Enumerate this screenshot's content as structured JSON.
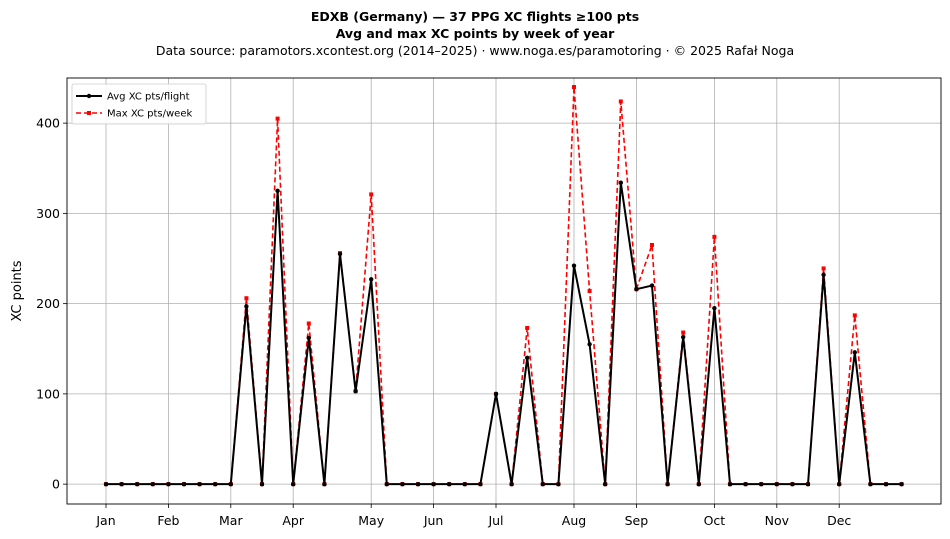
{
  "chart_data": {
    "type": "line",
    "title": "EDXB (Germany)  —  37 PPG XC flights ≥100 pts",
    "subtitle": "Avg and max XC points by week of year",
    "source": "Data source: paramotors.xcontest.org (2014–2025)  ·  www.noga.es/paramotoring  ·  © 2025 Rafał Noga",
    "xlabel": "",
    "ylabel": "XC points",
    "ylim": [
      -22,
      450
    ],
    "yticks": [
      0,
      100,
      200,
      300,
      400
    ],
    "x_ticks": [
      {
        "label": "Jan",
        "week": 1
      },
      {
        "label": "Feb",
        "week": 5
      },
      {
        "label": "Mar",
        "week": 9
      },
      {
        "label": "Apr",
        "week": 13
      },
      {
        "label": "May",
        "week": 18
      },
      {
        "label": "Jun",
        "week": 22
      },
      {
        "label": "Jul",
        "week": 26
      },
      {
        "label": "Aug",
        "week": 31
      },
      {
        "label": "Sep",
        "week": 35
      },
      {
        "label": "Oct",
        "week": 40
      },
      {
        "label": "Nov",
        "week": 44
      },
      {
        "label": "Dec",
        "week": 48
      }
    ],
    "x": [
      1,
      2,
      3,
      4,
      5,
      6,
      7,
      8,
      9,
      10,
      11,
      12,
      13,
      14,
      15,
      16,
      17,
      18,
      19,
      20,
      21,
      22,
      23,
      24,
      25,
      26,
      27,
      28,
      29,
      30,
      31,
      32,
      33,
      34,
      35,
      36,
      37,
      38,
      39,
      40,
      41,
      42,
      43,
      44,
      45,
      46,
      47,
      48,
      49,
      50,
      51,
      52
    ],
    "grid": true,
    "legend_position": "top-left",
    "series": [
      {
        "name": "Avg XC pts/flight",
        "color": "#000000",
        "style": "solid-circle",
        "values": [
          0,
          0,
          0,
          0,
          0,
          0,
          0,
          0,
          0,
          197,
          0,
          325,
          0,
          162,
          0,
          255,
          103,
          227,
          0,
          0,
          0,
          0,
          0,
          0,
          0,
          100,
          0,
          140,
          0,
          0,
          242,
          155,
          0,
          334,
          216,
          220,
          0,
          163,
          0,
          195,
          0,
          0,
          0,
          0,
          0,
          0,
          232,
          0,
          146,
          0,
          0,
          0
        ]
      },
      {
        "name": "Max XC pts/week",
        "color": "#ff0000",
        "style": "dashed-square",
        "values": [
          0,
          0,
          0,
          0,
          0,
          0,
          0,
          0,
          0,
          206,
          0,
          405,
          0,
          178,
          0,
          256,
          103,
          321,
          0,
          0,
          0,
          0,
          0,
          0,
          0,
          100,
          0,
          173,
          0,
          0,
          440,
          214,
          0,
          424,
          216,
          265,
          0,
          168,
          0,
          274,
          0,
          0,
          0,
          0,
          0,
          0,
          239,
          0,
          187,
          0,
          0,
          0
        ]
      }
    ]
  }
}
